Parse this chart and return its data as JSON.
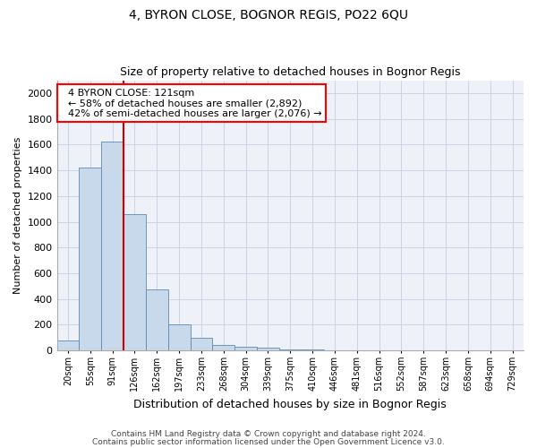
{
  "title": "4, BYRON CLOSE, BOGNOR REGIS, PO22 6QU",
  "subtitle": "Size of property relative to detached houses in Bognor Regis",
  "xlabel": "Distribution of detached houses by size in Bognor Regis",
  "ylabel": "Number of detached properties",
  "footer_line1": "Contains HM Land Registry data © Crown copyright and database right 2024.",
  "footer_line2": "Contains public sector information licensed under the Open Government Licence v3.0.",
  "annotation_line1": "4 BYRON CLOSE: 121sqm",
  "annotation_line2": "← 58% of detached houses are smaller (2,892)",
  "annotation_line3": "42% of semi-detached houses are larger (2,076) →",
  "bar_color": "#c9d9ec",
  "bar_edge_color": "#5b8ab5",
  "vline_color": "#cc0000",
  "vline_x": 2.5,
  "categories": [
    "20sqm",
    "55sqm",
    "91sqm",
    "126sqm",
    "162sqm",
    "197sqm",
    "233sqm",
    "268sqm",
    "304sqm",
    "339sqm",
    "375sqm",
    "410sqm",
    "446sqm",
    "481sqm",
    "516sqm",
    "552sqm",
    "587sqm",
    "623sqm",
    "658sqm",
    "694sqm",
    "729sqm"
  ],
  "values": [
    80,
    1420,
    1620,
    1060,
    475,
    205,
    100,
    40,
    30,
    20,
    10,
    5,
    3,
    2,
    1,
    1,
    0,
    0,
    0,
    0,
    0
  ],
  "ylim": [
    0,
    2100
  ],
  "yticks": [
    0,
    200,
    400,
    600,
    800,
    1000,
    1200,
    1400,
    1600,
    1800,
    2000
  ],
  "bg_color": "#eef2f8",
  "title_fontsize": 10,
  "subtitle_fontsize": 9
}
